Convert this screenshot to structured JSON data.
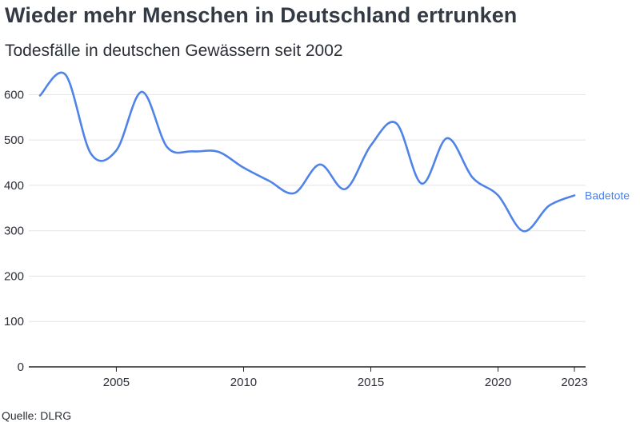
{
  "header": {
    "title": "Wieder mehr Menschen in Deutschland ertrunken",
    "subtitle": "Todesfälle in deutschen Gewässern seit 2002"
  },
  "footer": {
    "source": "Quelle: DLRG"
  },
  "colors": {
    "line": "#4f83e8",
    "grid": "#e3e3e3",
    "axis": "#222222"
  },
  "chart_data": {
    "type": "line",
    "title": "Wieder mehr Menschen in Deutschland ertrunken",
    "subtitle": "Todesfälle in deutschen Gewässern seit 2002",
    "xlabel": "",
    "ylabel": "",
    "xlim": [
      2002,
      2023
    ],
    "ylim": [
      0,
      650
    ],
    "yticks": [
      0,
      100,
      200,
      300,
      400,
      500,
      600
    ],
    "xticks": [
      2005,
      2010,
      2015,
      2020,
      2023
    ],
    "grid": true,
    "x": [
      2002,
      2003,
      2004,
      2005,
      2006,
      2007,
      2008,
      2009,
      2010,
      2011,
      2012,
      2013,
      2014,
      2015,
      2016,
      2017,
      2018,
      2019,
      2020,
      2021,
      2022,
      2023
    ],
    "series": [
      {
        "name": "Badetote",
        "values": [
          598,
          644,
          470,
          477,
          606,
          484,
          475,
          474,
          439,
          410,
          383,
          446,
          392,
          488,
          537,
          404,
          504,
          417,
          378,
          299,
          355,
          378
        ]
      }
    ]
  }
}
